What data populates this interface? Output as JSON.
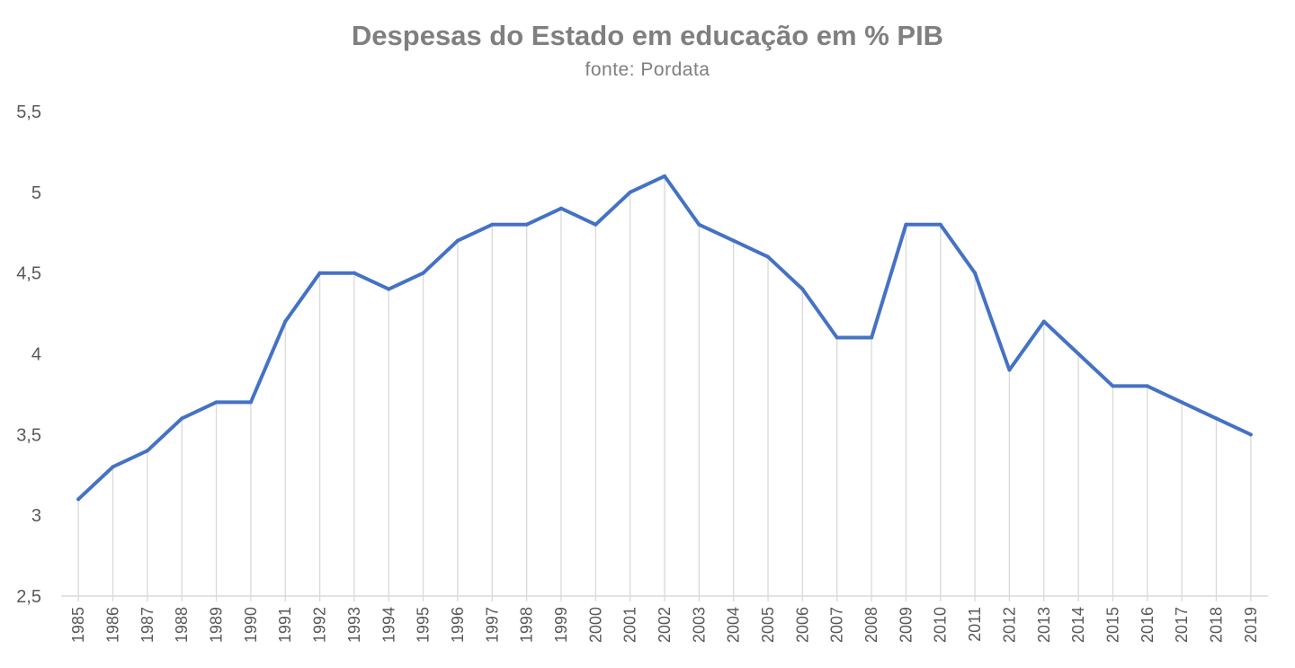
{
  "chart_data": {
    "type": "line",
    "title": "Despesas do Estado em educação em % PIB",
    "subtitle": "fonte: Pordata",
    "xlabel": "",
    "ylabel": "",
    "ylim": [
      2.5,
      5.5
    ],
    "yticks": [
      {
        "value": 2.5,
        "label": "2,5"
      },
      {
        "value": 3,
        "label": "3"
      },
      {
        "value": 3.5,
        "label": "3,5"
      },
      {
        "value": 4,
        "label": "4"
      },
      {
        "value": 4.5,
        "label": "4,5"
      },
      {
        "value": 5,
        "label": "5"
      },
      {
        "value": 5.5,
        "label": "5,5"
      }
    ],
    "grid": "vertical drop lines",
    "line_color": "#4472c4",
    "categories": [
      "1985",
      "1986",
      "1987",
      "1988",
      "1989",
      "1990",
      "1991",
      "1992",
      "1993",
      "1994",
      "1995",
      "1996",
      "1997",
      "1998",
      "1999",
      "2000",
      "2001",
      "2002",
      "2003",
      "2004",
      "2005",
      "2006",
      "2007",
      "2008",
      "2009",
      "2010",
      "2011",
      "2012",
      "2013",
      "2014",
      "2015",
      "2016",
      "2017",
      "2018",
      "2019"
    ],
    "series": [
      {
        "values": [
          3.1,
          3.3,
          3.4,
          3.6,
          3.7,
          3.7,
          4.2,
          4.5,
          4.5,
          4.4,
          4.5,
          4.7,
          4.8,
          4.8,
          4.9,
          4.8,
          5.0,
          5.1,
          4.8,
          4.7,
          4.6,
          4.4,
          4.1,
          4.1,
          4.8,
          4.8,
          4.5,
          3.9,
          4.2,
          4.0,
          3.8,
          3.8,
          3.7,
          3.6,
          3.5
        ]
      }
    ]
  }
}
